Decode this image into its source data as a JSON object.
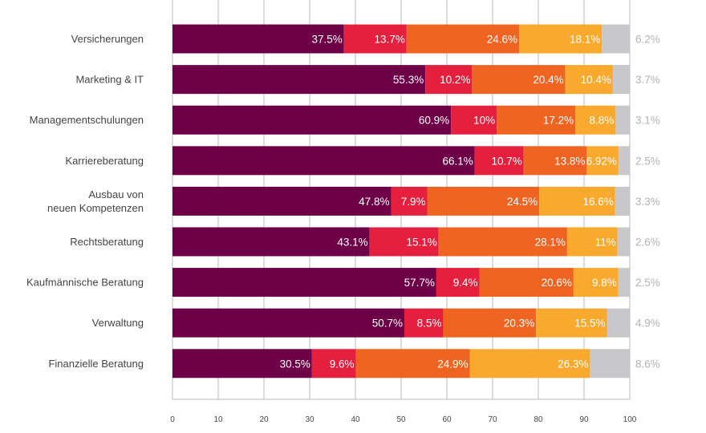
{
  "chart_data": {
    "type": "bar",
    "orientation": "horizontal",
    "stacked": true,
    "title": "",
    "xlabel": "",
    "ylabel": "",
    "xlim": [
      0,
      100
    ],
    "x_ticks": [
      0,
      10,
      20,
      30,
      40,
      50,
      60,
      70,
      80,
      90,
      100
    ],
    "grid": true,
    "legend": "none",
    "categories": [
      "Versicherungen",
      "Marketing & IT",
      "Managementschulungen",
      "Karriereberatung",
      "Ausbau von\nneuen Kompetenzen",
      "Rechtsberatung",
      "Kaufmännische Beratung",
      "Verwaltung",
      "Finanzielle Beratung"
    ],
    "series": [
      {
        "color": "#6d0046",
        "values": [
          37.5,
          55.3,
          60.9,
          66.1,
          47.8,
          43.1,
          57.7,
          50.7,
          30.5
        ],
        "labels": [
          "37.5%",
          "55.3%",
          "60.9%",
          "66.1%",
          "47.8%",
          "43.1%",
          "57.7%",
          "50.7%",
          "30.5%"
        ]
      },
      {
        "color": "#e5203f",
        "values": [
          13.7,
          10.2,
          10,
          10.7,
          7.9,
          15.1,
          9.4,
          8.5,
          9.6
        ],
        "labels": [
          "13.7%",
          "10.2%",
          "10%",
          "10.7%",
          "7.9%",
          "15.1%",
          "9.4%",
          "8.5%",
          "9.6%"
        ]
      },
      {
        "color": "#f06422",
        "values": [
          24.6,
          20.4,
          17.2,
          13.8,
          24.5,
          28.1,
          20.6,
          20.3,
          24.9
        ],
        "labels": [
          "24.6%",
          "20.4%",
          "17.2%",
          "13.8%",
          "24.5%",
          "28.1%",
          "20.6%",
          "20.3%",
          "24.9%"
        ]
      },
      {
        "color": "#f9aa2e",
        "values": [
          18.1,
          10.4,
          8.8,
          6.92,
          16.6,
          11,
          9.8,
          15.5,
          26.3
        ],
        "labels": [
          "18.1%",
          "10.4%",
          "8.8%",
          "6.92%",
          "16.6%",
          "11%",
          "9.8%",
          "15.5%",
          "26.3%"
        ]
      },
      {
        "color": "#c8c8ca",
        "values": [
          6.2,
          3.7,
          3.1,
          2.5,
          3.3,
          2.6,
          2.5,
          4.9,
          8.6
        ],
        "labels": [
          "6.2%",
          "3.7%",
          "3.1%",
          "2.5%",
          "3.3%",
          "2.6%",
          "2.5%",
          "4.9%",
          "8.6%"
        ]
      }
    ]
  }
}
